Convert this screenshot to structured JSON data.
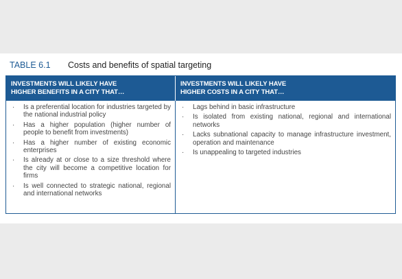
{
  "table": {
    "label": "TABLE 6.1",
    "title": "Costs and benefits of spatial targeting",
    "headers": [
      [
        "INVESTMENTS WILL LIKELY HAVE",
        "HIGHER BENEFITS IN A CITY THAT…"
      ],
      [
        "INVESTMENTS WILL LIKELY HAVE",
        "HIGHER COSTS IN A CITY THAT…"
      ]
    ],
    "columns": [
      [
        "Is a preferential location for industries targeted by the national industrial policy",
        "Has a higher population (higher number of people to benefit from investments)",
        "Has a higher number of existing economic enterprises",
        "Is already at or close to a size threshold where the city will become a competitive location for firms",
        "Is well connected to strategic national, regional and international networks"
      ],
      [
        "Lags behind in basic infrastructure",
        "Is isolated from existing national, regional and international networks",
        "Lacks subnational capacity to manage infrastructure investment, operation and maintenance",
        "Is unappealing to targeted industries"
      ]
    ]
  }
}
